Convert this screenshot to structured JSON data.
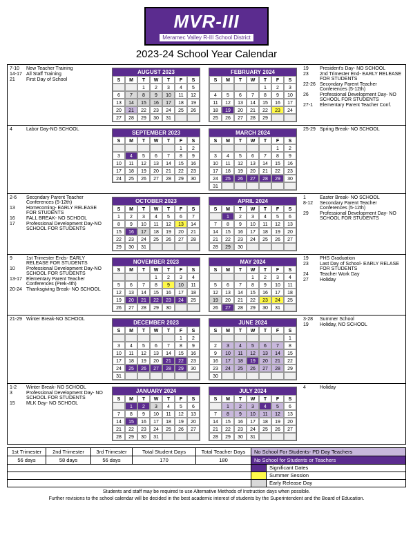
{
  "logo": {
    "top": "MVR-III",
    "bot": "Meramec Valley R-III School District"
  },
  "title": "2023-24 School Year Calendar",
  "dow": [
    "S",
    "M",
    "T",
    "W",
    "T",
    "F",
    "S"
  ],
  "legend": {
    "pd": {
      "label": "No School For Students- PD Day Teachers",
      "color": "#c8b8dc"
    },
    "ns": {
      "label": "No School for Students or Teachers",
      "color": "#5b2c8f"
    },
    "sig": {
      "label": "Significant Dates",
      "color": "#ffffff"
    },
    "ss": {
      "label": "Summer Session",
      "color": "#fff94a"
    },
    "er": {
      "label": "Early Release Day",
      "color": "#d9d9d9"
    }
  },
  "trimesters": {
    "headers": [
      "1st Trimester",
      "2nd Trimester",
      "3rd Trimester",
      "",
      "Total Student Days",
      "Total Teacher Days"
    ],
    "values": [
      "56 days",
      "58 days",
      "56 days",
      "",
      "170",
      "180"
    ]
  },
  "footnotes": [
    "Students and staff may be required to use Alternative Methods of Instruction days when possible.",
    "Further revisions to the school calendar will be decided in the best academic interest of students by the Superintendent and the Board of Education."
  ],
  "rows": [
    {
      "left_events": [
        {
          "d": "7-10",
          "t": "New Teacher Training"
        },
        {
          "d": "14-17",
          "t": "All Staff Training"
        },
        {
          "d": "21",
          "t": "First Day of School"
        }
      ],
      "left_cal": {
        "name": "AUGUST 2023",
        "start": 2,
        "days": 31,
        "hl": {
          "7": "er",
          "8": "er",
          "9": "er",
          "10": "er",
          "14": "er",
          "15": "er",
          "16": "er",
          "17": "er",
          "21": "pd"
        }
      },
      "right_cal": {
        "name": "FEBRUARY 2024",
        "start": 4,
        "days": 29,
        "hl": {
          "19": "ns",
          "23": "ss"
        }
      },
      "right_events": [
        {
          "d": "19",
          "t": "President's Day- NO SCHOOL"
        },
        {
          "d": "23",
          "t": "2nd Trimester End- EARLY RELEASE FOR STUDENTS"
        },
        {
          "d": "22-26",
          "t": "Secondary Parent Teacher Conferences (5-12th)"
        },
        {
          "d": "26",
          "t": "Professional Development Day- NO SCHOOL FOR STUDENTS"
        },
        {
          "d": "27-1",
          "t": "Elementary Parent Teacher Conf."
        }
      ]
    },
    {
      "left_events": [
        {
          "d": "4",
          "t": "Labor Day-NO SCHOOL"
        }
      ],
      "left_cal": {
        "name": "SEPTEMBER 2023",
        "start": 5,
        "days": 30,
        "hl": {
          "4": "ns"
        }
      },
      "right_cal": {
        "name": "MARCH 2024",
        "start": 5,
        "days": 31,
        "hl": {
          "25": "ns",
          "26": "ns",
          "27": "ns",
          "28": "ns",
          "29": "ns"
        }
      },
      "right_events": [
        {
          "d": "25-29",
          "t": "Spring Break- NO SCHOOL"
        }
      ]
    },
    {
      "left_events": [
        {
          "d": "2-6",
          "t": "Secondary Parent Teacher Conferences (5-12th)"
        },
        {
          "d": "13",
          "t": "Homecoming- EARLY RELEASE FOR STUDENTS"
        },
        {
          "d": "16",
          "t": "FALL BREAK- NO SCHOOL"
        },
        {
          "d": "17",
          "t": "Professional Development Day-NO SCHOOL FOR STUDENTS"
        }
      ],
      "left_cal": {
        "name": "OCTOBER 2023",
        "start": 0,
        "days": 31,
        "hl": {
          "13": "ss",
          "16": "ns",
          "17": "er"
        }
      },
      "right_cal": {
        "name": "APRIL 2024",
        "start": 1,
        "days": 30,
        "hl": {
          "1": "ns",
          "29": "er"
        }
      },
      "right_events": [
        {
          "d": "1",
          "t": "Easter Break- NO SCHOOL"
        },
        {
          "d": "8-12",
          "t": "Secondary Parent Teacher Conferences (5-12th)"
        },
        {
          "d": "29",
          "t": "Professional Development Day- NO SCHOOL FOR STUDENTS"
        }
      ]
    },
    {
      "left_events": [
        {
          "d": "9",
          "t": "1st Trimester Ends- EARLY RELEASE FOR STUDENTS"
        },
        {
          "d": "10",
          "t": "Professional Development Day-NO SCHOOL FOR STUDENTS"
        },
        {
          "d": "13-17",
          "t": "Elementary Parent Teacher Conferences (Prek-4th)"
        },
        {
          "d": "20-24",
          "t": "Thanksgiving Break- NO SCHOOL"
        }
      ],
      "left_cal": {
        "name": "NOVEMBER 2023",
        "start": 3,
        "days": 30,
        "hl": {
          "9": "ss",
          "10": "er",
          "20": "ns",
          "21": "ns",
          "22": "ns",
          "23": "ns",
          "24": "ns"
        }
      },
      "right_cal": {
        "name": "MAY 2024",
        "start": 3,
        "days": 31,
        "hl": {
          "19": "er",
          "23": "ss",
          "24": "ss",
          "27": "ns"
        }
      },
      "right_events": [
        {
          "d": "19",
          "t": "PHS Graduation"
        },
        {
          "d": "23",
          "t": "Last Day of School- EARLY RELASE FOR STUDENTS"
        },
        {
          "d": "24",
          "t": "Teacher Work Day"
        },
        {
          "d": "27",
          "t": "Holiday"
        }
      ]
    },
    {
      "left_events": [
        {
          "d": "21-29",
          "t": "Winter Break-NO SCHOOL"
        }
      ],
      "left_cal": {
        "name": "DECEMBER 2023",
        "start": 5,
        "days": 31,
        "hl": {
          "21": "ns",
          "22": "ns",
          "25": "ns",
          "26": "ns",
          "27": "ns",
          "28": "ns",
          "29": "ns"
        }
      },
      "right_cal": {
        "name": "JUNE 2024",
        "start": 6,
        "days": 30,
        "hl": {
          "3": "pd",
          "4": "pd",
          "5": "pd",
          "6": "pd",
          "7": "pd",
          "10": "pd",
          "11": "pd",
          "12": "pd",
          "13": "pd",
          "14": "pd",
          "17": "pd",
          "18": "pd",
          "19": "ns",
          "20": "pd",
          "21": "pd",
          "24": "pd",
          "25": "pd",
          "26": "pd",
          "27": "pd",
          "28": "pd"
        }
      },
      "right_events": [
        {
          "d": "3-28",
          "t": "Summer School"
        },
        {
          "d": "19",
          "t": "Holiday, NO SCHOOL"
        }
      ]
    },
    {
      "left_events": [
        {
          "d": "1-2",
          "t": "Winter Break- NO SCHOOL"
        },
        {
          "d": "3",
          "t": "Professional Development Day- NO SCHOOL FOR STUDENTS"
        },
        {
          "d": "15",
          "t": "MLK Day- NO SCHOOL"
        }
      ],
      "left_cal": {
        "name": "JANUARY 2024",
        "start": 1,
        "days": 31,
        "hl": {
          "1": "ns",
          "2": "ns",
          "3": "er",
          "15": "ns"
        }
      },
      "right_cal": {
        "name": "JULY 2024",
        "start": 1,
        "days": 31,
        "hl": {
          "1": "pd",
          "2": "pd",
          "3": "pd",
          "4": "ns",
          "5": "pd",
          "8": "pd",
          "9": "pd",
          "10": "pd",
          "11": "pd",
          "12": "pd"
        }
      },
      "right_events": [
        {
          "d": "4",
          "t": "Holiday"
        }
      ]
    }
  ]
}
